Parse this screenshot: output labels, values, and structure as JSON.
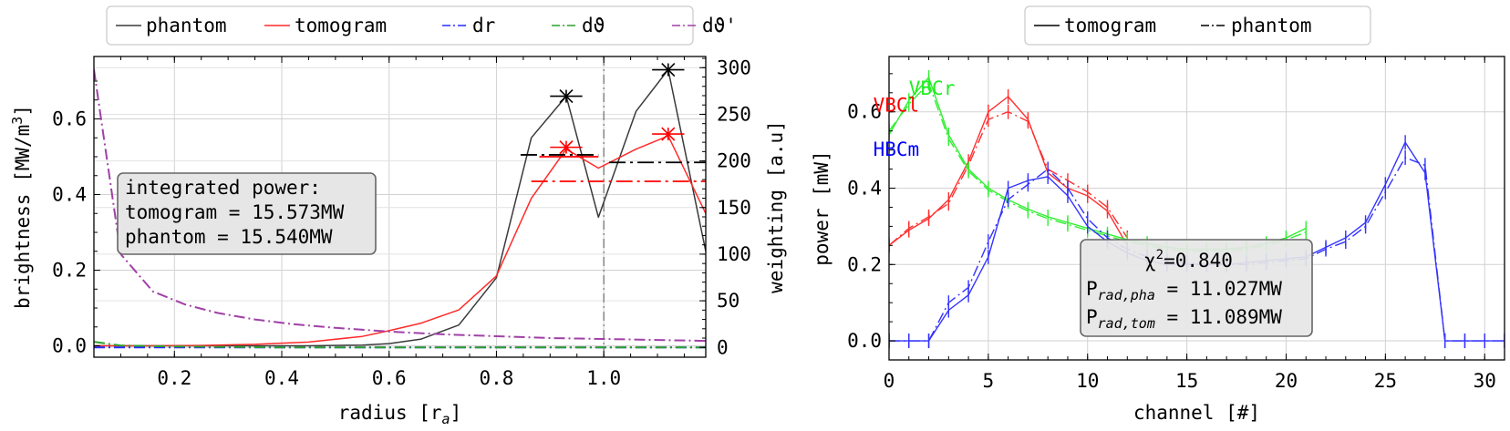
{
  "chart_data": [
    {
      "type": "line",
      "xlabel": "radius [r",
      "xlabel_sub": "a",
      "xlabel_end": "]",
      "ylabel": "brightness [MW/m",
      "ylabel_sup": "3",
      "ylabel_end": "]",
      "y2label": "weighting [a.u]",
      "xlim": [
        0.05,
        1.19
      ],
      "ylim": [
        -0.03,
        0.765
      ],
      "y2lim": [
        -10.5,
        312
      ],
      "xticks": [
        "0.2",
        "0.4",
        "0.6",
        "0.8",
        "1.0"
      ],
      "xtick_values": [
        0.2,
        0.4,
        0.6,
        0.8,
        1.0
      ],
      "yticks": [
        "0.0",
        "0.2",
        "0.4",
        "0.6"
      ],
      "ytick_values": [
        0.0,
        0.2,
        0.4,
        0.6
      ],
      "y2ticks": [
        "0",
        "50",
        "100",
        "150",
        "200",
        "250",
        "300"
      ],
      "y2tick_values": [
        0,
        50,
        100,
        150,
        200,
        250,
        300
      ],
      "grid": true,
      "legend_position": "top-center, outside",
      "legend": [
        {
          "label": "phantom",
          "color": "#3a3a3a",
          "dash": "solid"
        },
        {
          "label": "tomogram",
          "color": "#ff2a2a",
          "dash": "solid"
        },
        {
          "label": "dr",
          "color": "#2a2aff",
          "dash": "dashdot"
        },
        {
          "label": "dϑ",
          "color": "#2ca02c",
          "dash": "dashdot"
        },
        {
          "label": "dϑ'",
          "color": "#a040a8",
          "dash": "dashdot"
        }
      ],
      "series": [
        {
          "name": "phantom",
          "color": "#3a3a3a",
          "axis": "left",
          "dash": "solid",
          "x": [
            0.05,
            0.15,
            0.25,
            0.35,
            0.45,
            0.55,
            0.6,
            0.66,
            0.73,
            0.8,
            0.865,
            0.93,
            0.99,
            1.06,
            1.12,
            1.19
          ],
          "y": [
            0.0,
            0.0,
            0.0,
            0.0,
            0.0,
            0.002,
            0.006,
            0.018,
            0.055,
            0.18,
            0.55,
            0.66,
            0.34,
            0.62,
            0.73,
            0.25
          ]
        },
        {
          "name": "tomogram",
          "color": "#ff2a2a",
          "axis": "left",
          "dash": "solid",
          "x": [
            0.05,
            0.15,
            0.25,
            0.35,
            0.45,
            0.55,
            0.6,
            0.66,
            0.73,
            0.8,
            0.865,
            0.93,
            0.99,
            1.06,
            1.12,
            1.19
          ],
          "y": [
            0.0,
            0.0,
            0.001,
            0.004,
            0.01,
            0.025,
            0.04,
            0.06,
            0.095,
            0.185,
            0.39,
            0.52,
            0.47,
            0.52,
            0.555,
            0.35
          ]
        },
        {
          "name": "dr",
          "color": "#2a2aff",
          "axis": "right",
          "dash": "dashdot",
          "x": [
            0.05,
            0.1,
            0.2,
            0.4,
            0.6,
            0.8,
            1.0,
            1.19
          ],
          "y": [
            0,
            0,
            0,
            0,
            0,
            0,
            0,
            0
          ]
        },
        {
          "name": "dϑ",
          "color": "#2ca02c",
          "axis": "right",
          "dash": "dashdot",
          "x": [
            0.05,
            0.1,
            0.2,
            0.4,
            0.6,
            0.8,
            1.0,
            1.19
          ],
          "y": [
            6,
            2,
            1,
            0,
            0,
            0,
            0,
            0
          ]
        },
        {
          "name": "dϑ'",
          "color": "#a040a8",
          "axis": "right",
          "dash": "dashdot",
          "x": [
            0.05,
            0.1,
            0.16,
            0.22,
            0.28,
            0.35,
            0.42,
            0.5,
            0.6,
            0.7,
            0.8,
            0.9,
            1.0,
            1.1,
            1.19
          ],
          "y": [
            298,
            100,
            60,
            46,
            37,
            30,
            25,
            21,
            17,
            14,
            12,
            10,
            9,
            8,
            7
          ]
        }
      ],
      "markers": [
        {
          "series": "phantom",
          "x": 0.93,
          "y": 0.66,
          "color": "#000000",
          "halfwidth": 0.03
        },
        {
          "series": "phantom",
          "x": 1.12,
          "y": 0.73,
          "color": "#000000",
          "halfwidth": 0.03
        },
        {
          "series": "tomogram",
          "x": 0.93,
          "y": 0.525,
          "color": "#ff0000",
          "halfwidth": 0.03
        },
        {
          "series": "tomogram",
          "x": 1.12,
          "y": 0.56,
          "color": "#ff0000",
          "halfwidth": 0.03
        }
      ],
      "hlines": [
        {
          "color": "#000000",
          "x1": 0.845,
          "x2": 0.99,
          "y": 0.505,
          "dash": "dashdot"
        },
        {
          "color": "#000000",
          "x1": 1.01,
          "x2": 1.19,
          "y": 0.485,
          "dash": "dashdot"
        },
        {
          "color": "#ff0000",
          "x1": 0.88,
          "x2": 0.99,
          "y": 0.5,
          "dash": "solid"
        },
        {
          "color": "#ff0000",
          "x1": 0.865,
          "x2": 1.19,
          "y": 0.435,
          "dash": "dashdot"
        }
      ],
      "vline": {
        "x": 1.0,
        "color": "#777777",
        "dash": "dashdot"
      },
      "annotation": [
        "integrated power:",
        "tomogram = 15.573MW",
        "phantom = 15.540MW"
      ]
    },
    {
      "type": "line",
      "xlabel": "channel [#]",
      "ylabel": "power [mW]",
      "xlim": [
        0,
        31
      ],
      "ylim": [
        -0.05,
        0.745
      ],
      "xticks": [
        "0",
        "5",
        "10",
        "15",
        "20",
        "25",
        "30"
      ],
      "xtick_values": [
        0,
        5,
        10,
        15,
        20,
        25,
        30
      ],
      "yticks": [
        "0.0",
        "0.2",
        "0.4",
        "0.6"
      ],
      "ytick_values": [
        0.0,
        0.2,
        0.4,
        0.6
      ],
      "grid": true,
      "legend_position": "top-center, outside",
      "legend": [
        {
          "label": "tomogram",
          "color": "#000000",
          "dash": "solid"
        },
        {
          "label": "phantom",
          "color": "#000000",
          "dash": "dashdot"
        }
      ],
      "series_labels": [
        {
          "text": "VBCr",
          "color": "#22ee22",
          "x": 1.0,
          "y": 0.645
        },
        {
          "text": "VBCl",
          "color": "#ff0000",
          "x": -0.8,
          "y": 0.6
        },
        {
          "text": "HBCm",
          "color": "#0000ff",
          "x": -0.8,
          "y": 0.485
        }
      ],
      "series": [
        {
          "name": "VBCl tomogram",
          "color": "#ff3030",
          "dash": "solid",
          "x": [
            0,
            1,
            2,
            3,
            4,
            5,
            6,
            7,
            8,
            9,
            10,
            11,
            12
          ],
          "y": [
            0.25,
            0.29,
            0.32,
            0.37,
            0.47,
            0.6,
            0.64,
            0.58,
            0.44,
            0.4,
            0.38,
            0.34,
            0.25
          ]
        },
        {
          "name": "VBCl phantom",
          "color": "#ff3030",
          "dash": "dashdot",
          "x": [
            0,
            1,
            2,
            3,
            4,
            5,
            6,
            7,
            8,
            9,
            10,
            11,
            12
          ],
          "y": [
            0.25,
            0.295,
            0.325,
            0.36,
            0.46,
            0.58,
            0.6,
            0.575,
            0.45,
            0.42,
            0.39,
            0.35,
            0.27
          ]
        },
        {
          "name": "VBCr tomogram",
          "color": "#33ee33",
          "dash": "solid",
          "x": [
            0,
            1,
            2,
            3,
            4,
            5,
            6,
            7,
            8,
            9,
            10,
            11,
            12,
            13,
            14,
            15,
            16,
            17,
            18,
            19,
            20,
            21
          ],
          "y": [
            0.54,
            0.63,
            0.69,
            0.54,
            0.45,
            0.4,
            0.37,
            0.345,
            0.325,
            0.31,
            0.295,
            0.28,
            0.265,
            0.255,
            0.245,
            0.24,
            0.24,
            0.24,
            0.245,
            0.255,
            0.27,
            0.295
          ]
        },
        {
          "name": "VBCr phantom",
          "color": "#33ee33",
          "dash": "dashdot",
          "x": [
            0,
            1,
            2,
            3,
            4,
            5,
            6,
            7,
            8,
            9,
            10,
            11,
            12,
            13,
            14,
            15,
            16,
            17,
            18,
            19,
            20,
            21
          ],
          "y": [
            0.55,
            0.62,
            0.675,
            0.53,
            0.445,
            0.395,
            0.365,
            0.34,
            0.32,
            0.305,
            0.29,
            0.275,
            0.26,
            0.25,
            0.24,
            0.235,
            0.235,
            0.235,
            0.24,
            0.25,
            0.265,
            0.285
          ]
        },
        {
          "name": "HBCm tomogram",
          "color": "#3333ff",
          "dash": "solid",
          "x": [
            0,
            1,
            2,
            3,
            4,
            5,
            6,
            7,
            8,
            9,
            10,
            11,
            12,
            13,
            14,
            15,
            16,
            17,
            18,
            19,
            20,
            21,
            22,
            23,
            24,
            25,
            26,
            27,
            28,
            29,
            30,
            31
          ],
          "y": [
            0.0,
            0.0,
            0.0,
            0.08,
            0.12,
            0.22,
            0.4,
            0.42,
            0.43,
            0.38,
            0.3,
            0.26,
            0.23,
            0.21,
            0.2,
            0.2,
            0.2,
            0.2,
            0.205,
            0.21,
            0.215,
            0.22,
            0.245,
            0.27,
            0.31,
            0.41,
            0.52,
            0.44,
            0.0,
            0.0,
            0.0,
            0.0
          ]
        },
        {
          "name": "HBCm phantom",
          "color": "#3333ff",
          "dash": "dashdot",
          "x": [
            0,
            1,
            2,
            3,
            4,
            5,
            6,
            7,
            8,
            9,
            10,
            11,
            12,
            13,
            14,
            15,
            16,
            17,
            18,
            19,
            20,
            21,
            22,
            23,
            24,
            25,
            26,
            27,
            28,
            29,
            30,
            31
          ],
          "y": [
            0.0,
            0.0,
            0.0,
            0.1,
            0.14,
            0.26,
            0.37,
            0.41,
            0.45,
            0.4,
            0.32,
            0.27,
            0.24,
            0.22,
            0.21,
            0.205,
            0.2,
            0.2,
            0.2,
            0.205,
            0.21,
            0.215,
            0.24,
            0.26,
            0.3,
            0.39,
            0.48,
            0.46,
            0.0,
            0.0,
            0.0,
            0.0
          ]
        }
      ],
      "annotation": {
        "chi": "χ",
        "chi_sup": "2",
        "chi_val": "=0.840",
        "lines": [
          {
            "P": "P",
            "sub": "rad,pha",
            "val": " = 11.027MW"
          },
          {
            "P": "P",
            "sub": "rad,tom",
            "val": " = 11.089MW"
          }
        ]
      }
    }
  ]
}
